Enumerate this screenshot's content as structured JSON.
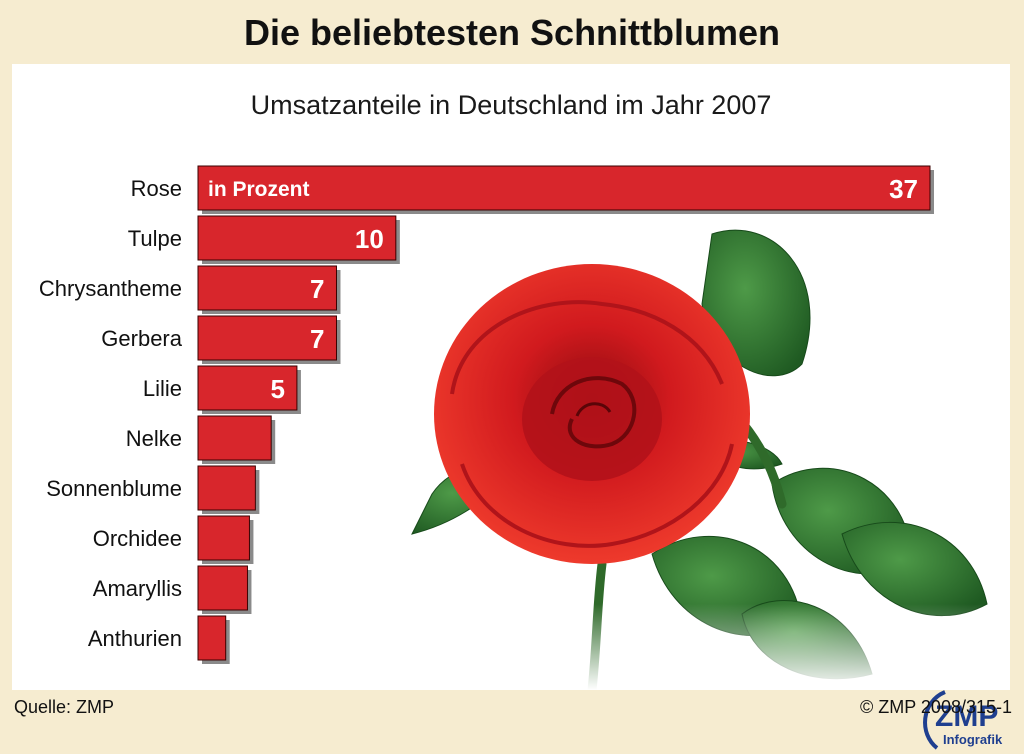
{
  "header": {
    "title": "Die beliebtesten Schnittblumen",
    "subtitle": "Umsatzanteile in Deutschland im Jahr 2007"
  },
  "footer": {
    "source": "Quelle: ZMP",
    "copyright": "© ZMP 2008/315-1"
  },
  "logo": {
    "main": "ZMP",
    "sub": "Infografik"
  },
  "colors": {
    "bar": "#d8262c",
    "background": "#f6ecd0",
    "logo": "#1f3f8f"
  },
  "chart_data": {
    "type": "bar",
    "orientation": "horizontal",
    "unit_label": "in Prozent",
    "categories": [
      "Rose",
      "Tulpe",
      "Chrysantheme",
      "Gerbera",
      "Lilie",
      "Nelke",
      "Sonnenblume",
      "Orchidee",
      "Amaryllis",
      "Anthurien"
    ],
    "values": [
      37,
      10,
      7,
      7,
      5,
      3.7,
      2.9,
      2.6,
      2.5,
      1.4
    ],
    "data_labels": [
      "37",
      "10",
      "7",
      "7",
      "5",
      "",
      "",
      "",
      "",
      ""
    ],
    "xlim": [
      0,
      37
    ]
  }
}
